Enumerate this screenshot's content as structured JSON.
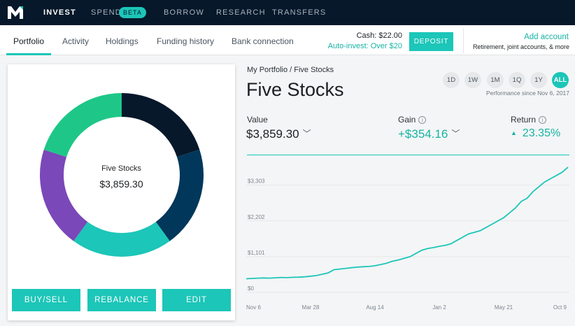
{
  "nav": {
    "logo_icon": "m1-logo-icon",
    "items": [
      {
        "label": "INVEST",
        "active": true
      },
      {
        "label": "SPEND",
        "active": false
      },
      {
        "label": "BORROW",
        "active": false
      },
      {
        "label": "RESEARCH",
        "active": false
      },
      {
        "label": "TRANSFERS",
        "active": false
      }
    ],
    "badge": "BETA"
  },
  "tabs": [
    {
      "label": "Portfolio",
      "active": true
    },
    {
      "label": "Activity",
      "active": false
    },
    {
      "label": "Holdings",
      "active": false
    },
    {
      "label": "Funding history",
      "active": false
    },
    {
      "label": "Bank connection",
      "active": false
    }
  ],
  "account": {
    "cash": "Cash: $22.00",
    "auto_invest": "Auto-invest: Over $20",
    "deposit_label": "DEPOSIT",
    "add_account": "Add account",
    "add_account_sub": "Retirement, joint accounts, & more"
  },
  "pie": {
    "title": "Five Stocks",
    "value": "$3,859.30",
    "slices": [
      {
        "value": 20,
        "color": "#06182a"
      },
      {
        "value": 20,
        "color": "#00375a"
      },
      {
        "value": 20,
        "color": "#1cc6b8"
      },
      {
        "value": 20,
        "color": "#7a48b8"
      },
      {
        "value": 20,
        "color": "#1ec788"
      }
    ]
  },
  "actions": {
    "buy_sell": "BUY/SELL",
    "rebalance": "REBALANCE",
    "edit": "EDIT"
  },
  "portfolio": {
    "breadcrumb": "My Portfolio / Five Stocks",
    "name": "Five Stocks",
    "ranges": [
      "1D",
      "1W",
      "1M",
      "1Q",
      "1Y",
      "ALL"
    ],
    "active_range": "ALL",
    "performance_note": "Performance since Nov 6, 2017",
    "value_label": "Value",
    "value": "$3,859.30",
    "gain_label": "Gain",
    "gain": "+$354.16",
    "return_label": "Return",
    "return": "23.35%"
  },
  "colors": {
    "accent": "#1cc6b8",
    "nav_bg": "#06182a"
  },
  "chart_data": {
    "type": "line",
    "y_ticks": [
      "$0",
      "$1,101",
      "$2,202",
      "$3,303"
    ],
    "y_tick_values": [
      0,
      1101,
      2202,
      3303
    ],
    "x_ticks": [
      "Nov 6",
      "Mar 28",
      "Aug 14",
      "Jan 2",
      "May 21",
      "Oct 9"
    ],
    "ylim": [
      0,
      4050
    ],
    "grid": true,
    "series": [
      {
        "color": "#1cc6b8",
        "values": [
          420,
          430,
          440,
          445,
          440,
          450,
          460,
          455,
          465,
          470,
          480,
          500,
          520,
          560,
          600,
          700,
          720,
          740,
          760,
          780,
          790,
          800,
          820,
          860,
          900,
          960,
          1000,
          1050,
          1100,
          1200,
          1300,
          1350,
          1380,
          1420,
          1450,
          1500,
          1600,
          1700,
          1800,
          1850,
          1900,
          2000,
          2100,
          2200,
          2300,
          2450,
          2600,
          2800,
          2900,
          3100,
          3250,
          3400,
          3500,
          3600,
          3700,
          3859
        ]
      }
    ]
  }
}
